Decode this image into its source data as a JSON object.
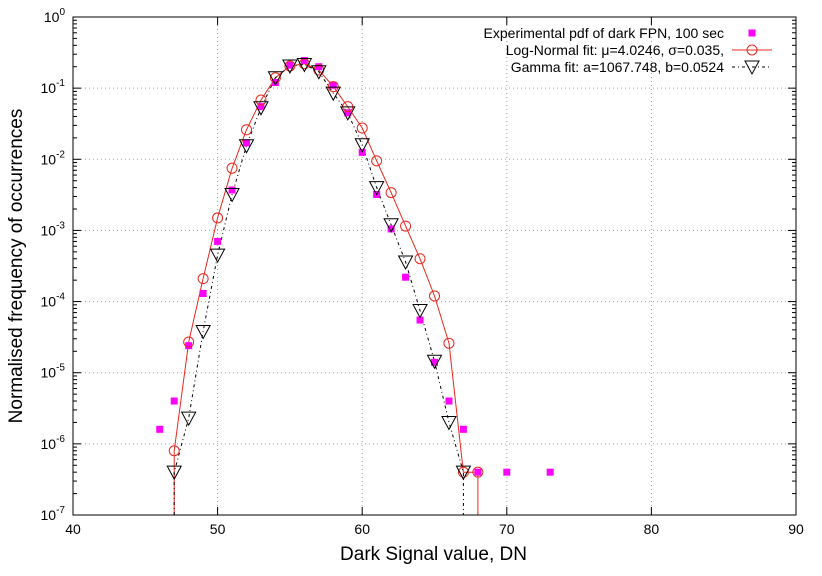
{
  "chart_data": {
    "type": "scatter",
    "xlabel": "Dark Signal value, DN",
    "ylabel": "Normalised frequency of occurrences",
    "xlim": [
      40,
      90
    ],
    "ylim": [
      1e-07,
      1
    ],
    "y_scale": "log",
    "grid": true,
    "legend_position": "top-right",
    "x_ticks": [
      "40",
      "50",
      "60",
      "70",
      "80",
      "90"
    ],
    "x_tick_values": [
      40,
      50,
      60,
      70,
      80,
      90
    ],
    "y_ticks": [
      {
        "value": 1e-07,
        "base": "10",
        "exp": "-7"
      },
      {
        "value": 1e-06,
        "base": "10",
        "exp": "-6"
      },
      {
        "value": 1e-05,
        "base": "10",
        "exp": "-5"
      },
      {
        "value": 0.0001,
        "base": "10",
        "exp": "-4"
      },
      {
        "value": 0.001,
        "base": "10",
        "exp": "-3"
      },
      {
        "value": 0.01,
        "base": "10",
        "exp": "-2"
      },
      {
        "value": 0.1,
        "base": "10",
        "exp": "-1"
      },
      {
        "value": 1,
        "base": "10",
        "exp": "0"
      }
    ],
    "series": [
      {
        "name": "Experimental pdf of dark FPN, 100 sec",
        "color": "#ff00ff",
        "marker": "square",
        "line": "none",
        "x": [
          46,
          47,
          48,
          49,
          50,
          51,
          52,
          53,
          54,
          55,
          56,
          57,
          58,
          59,
          60,
          61,
          62,
          63,
          64,
          65,
          66,
          67,
          68,
          70,
          73
        ],
        "y": [
          1.6e-06,
          4e-06,
          2.4e-05,
          0.00013,
          0.0007,
          0.0037,
          0.017,
          0.055,
          0.12,
          0.21,
          0.245,
          0.2,
          0.11,
          0.045,
          0.0125,
          0.0032,
          0.00105,
          0.00022,
          5.5e-05,
          1.4e-05,
          4e-06,
          1.6e-06,
          4e-07,
          4e-07,
          4e-07
        ]
      },
      {
        "name": "Log-Normal fit: μ=4.0246, σ=0.035,",
        "color": "#e8281e",
        "marker": "circle",
        "line": "solid",
        "x": [
          47,
          48,
          49,
          50,
          51,
          52,
          53,
          54,
          55,
          56,
          57,
          58,
          59,
          60,
          61,
          62,
          63,
          64,
          65,
          66,
          67,
          68
        ],
        "y": [
          8e-07,
          2.7e-05,
          0.00021,
          0.0015,
          0.0075,
          0.026,
          0.068,
          0.14,
          0.205,
          0.22,
          0.18,
          0.105,
          0.055,
          0.0275,
          0.0095,
          0.0034,
          0.00115,
          0.0004,
          0.00012,
          2.6e-05,
          4e-07,
          4e-07
        ]
      },
      {
        "name": "Gamma fit: a=1067.748, b=0.0524",
        "color": "#000000",
        "marker": "triangle-down",
        "line": "dashdot",
        "x": [
          47,
          48,
          49,
          50,
          51,
          52,
          53,
          54,
          55,
          56,
          57,
          58,
          59,
          60,
          61,
          62,
          63,
          64,
          65,
          66,
          67
        ],
        "y": [
          4e-07,
          2.3e-06,
          3.8e-05,
          0.00045,
          0.0032,
          0.0155,
          0.053,
          0.14,
          0.205,
          0.215,
          0.17,
          0.085,
          0.045,
          0.016,
          0.004,
          0.0012,
          0.00036,
          7.5e-05,
          1.45e-05,
          2e-06,
          4e-07
        ]
      }
    ]
  }
}
